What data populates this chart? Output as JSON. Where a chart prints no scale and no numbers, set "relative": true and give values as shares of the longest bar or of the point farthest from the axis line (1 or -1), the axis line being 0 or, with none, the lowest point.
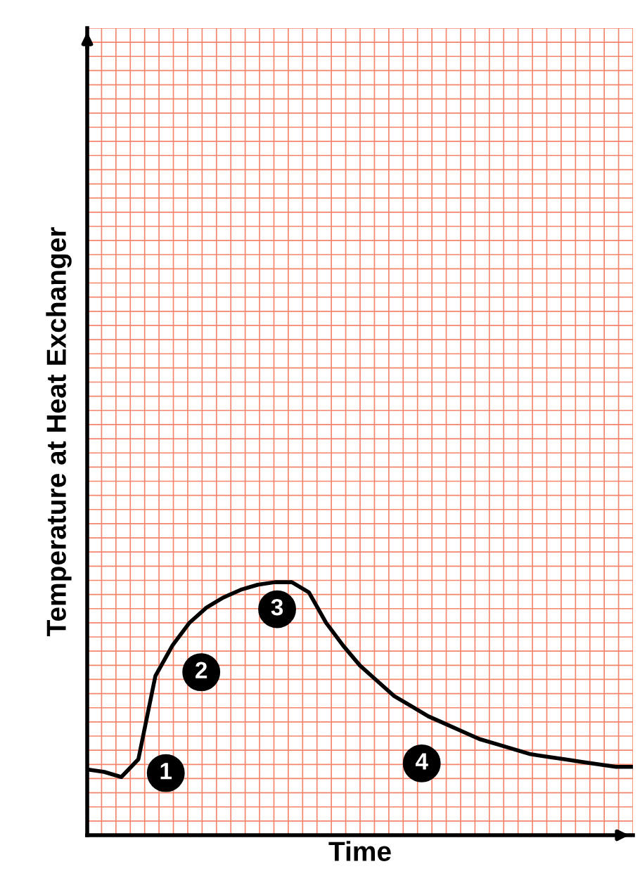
{
  "chart_data": {
    "type": "line",
    "relative": true,
    "xlabel": "Time",
    "ylabel": "Temperature at Heat Exchanger",
    "color": "#000000",
    "grid": true,
    "tick_labels": false,
    "marker": "none",
    "line_style": "solid",
    "categories": [
      null,
      null,
      null,
      null,
      null,
      null,
      null,
      null,
      null,
      null,
      null,
      null,
      null,
      null,
      null,
      null,
      null,
      null,
      null,
      null,
      null,
      null,
      null,
      null,
      null,
      null,
      null,
      null,
      null,
      null,
      null,
      null,
      null
    ],
    "values": [
      0.26,
      0.25,
      0.23,
      0.3,
      0.63,
      0.75,
      0.84,
      0.9,
      0.94,
      0.97,
      0.99,
      1.0,
      1.0,
      0.96,
      0.84,
      0.75,
      0.67,
      0.61,
      0.55,
      0.51,
      0.47,
      0.44,
      0.41,
      0.38,
      0.36,
      0.34,
      0.32,
      0.31,
      0.3,
      0.29,
      0.28,
      0.27,
      0.27
    ],
    "annotations": [
      "1",
      "2",
      "3",
      "4"
    ]
  }
}
